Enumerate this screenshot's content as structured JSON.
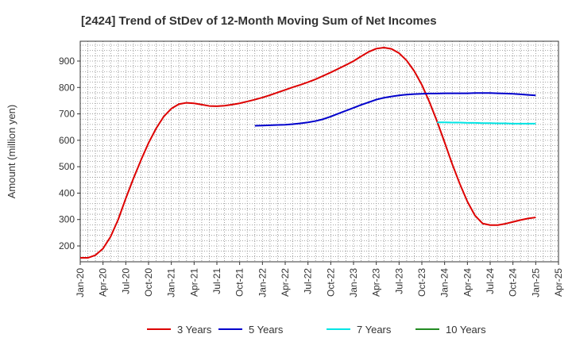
{
  "chart_data": {
    "type": "line",
    "title": "[2424]  Trend of StDev of 12-Month Moving Sum of Net Incomes",
    "xlabel": "",
    "ylabel": "Amount (million yen)",
    "ylim": [
      140,
      975
    ],
    "yticks": [
      200,
      300,
      400,
      500,
      600,
      700,
      800,
      900
    ],
    "xlim": [
      "2020-01",
      "2025-04"
    ],
    "xticks": [
      "Jan-20",
      "Apr-20",
      "Jul-20",
      "Oct-20",
      "Jan-21",
      "Apr-21",
      "Jul-21",
      "Oct-21",
      "Jan-22",
      "Apr-22",
      "Jul-22",
      "Oct-22",
      "Jan-23",
      "Apr-23",
      "Jul-23",
      "Oct-23",
      "Jan-24",
      "Apr-24",
      "Jul-24",
      "Oct-24",
      "Jan-25",
      "Apr-25"
    ],
    "grid": true,
    "legend_position": "bottom",
    "series": [
      {
        "name": "3 Years",
        "color": "#dd0000",
        "points": [
          [
            "2020-01",
            155
          ],
          [
            "2020-02",
            155
          ],
          [
            "2020-03",
            165
          ],
          [
            "2020-04",
            190
          ],
          [
            "2020-05",
            235
          ],
          [
            "2020-06",
            300
          ],
          [
            "2020-07",
            380
          ],
          [
            "2020-08",
            455
          ],
          [
            "2020-09",
            525
          ],
          [
            "2020-10",
            590
          ],
          [
            "2020-11",
            645
          ],
          [
            "2020-12",
            690
          ],
          [
            "2021-01",
            720
          ],
          [
            "2021-02",
            737
          ],
          [
            "2021-03",
            742
          ],
          [
            "2021-04",
            740
          ],
          [
            "2021-05",
            735
          ],
          [
            "2021-06",
            730
          ],
          [
            "2021-07",
            729
          ],
          [
            "2021-08",
            731
          ],
          [
            "2021-09",
            735
          ],
          [
            "2021-10",
            740
          ],
          [
            "2021-11",
            747
          ],
          [
            "2021-12",
            754
          ],
          [
            "2022-01",
            762
          ],
          [
            "2022-02",
            771
          ],
          [
            "2022-03",
            781
          ],
          [
            "2022-04",
            791
          ],
          [
            "2022-05",
            801
          ],
          [
            "2022-06",
            810
          ],
          [
            "2022-07",
            820
          ],
          [
            "2022-08",
            831
          ],
          [
            "2022-09",
            844
          ],
          [
            "2022-10",
            857
          ],
          [
            "2022-11",
            871
          ],
          [
            "2022-12",
            885
          ],
          [
            "2023-01",
            900
          ],
          [
            "2023-02",
            918
          ],
          [
            "2023-03",
            935
          ],
          [
            "2023-04",
            947
          ],
          [
            "2023-05",
            951
          ],
          [
            "2023-06",
            946
          ],
          [
            "2023-07",
            930
          ],
          [
            "2023-08",
            902
          ],
          [
            "2023-09",
            862
          ],
          [
            "2023-10",
            810
          ],
          [
            "2023-11",
            745
          ],
          [
            "2023-12",
            672
          ],
          [
            "2024-01",
            592
          ],
          [
            "2024-02",
            510
          ],
          [
            "2024-03",
            435
          ],
          [
            "2024-04",
            368
          ],
          [
            "2024-05",
            315
          ],
          [
            "2024-06",
            285
          ],
          [
            "2024-07",
            279
          ],
          [
            "2024-08",
            279
          ],
          [
            "2024-09",
            284
          ],
          [
            "2024-10",
            291
          ],
          [
            "2024-11",
            298
          ],
          [
            "2024-12",
            304
          ],
          [
            "2025-01",
            308
          ]
        ]
      },
      {
        "name": "5 Years",
        "color": "#0000cc",
        "points": [
          [
            "2021-12",
            655
          ],
          [
            "2022-01",
            656
          ],
          [
            "2022-02",
            657
          ],
          [
            "2022-03",
            658
          ],
          [
            "2022-04",
            659
          ],
          [
            "2022-05",
            661
          ],
          [
            "2022-06",
            664
          ],
          [
            "2022-07",
            668
          ],
          [
            "2022-08",
            673
          ],
          [
            "2022-09",
            680
          ],
          [
            "2022-10",
            690
          ],
          [
            "2022-11",
            701
          ],
          [
            "2022-12",
            712
          ],
          [
            "2023-01",
            723
          ],
          [
            "2023-02",
            734
          ],
          [
            "2023-03",
            744
          ],
          [
            "2023-04",
            754
          ],
          [
            "2023-05",
            761
          ],
          [
            "2023-06",
            766
          ],
          [
            "2023-07",
            770
          ],
          [
            "2023-08",
            773
          ],
          [
            "2023-09",
            775
          ],
          [
            "2023-10",
            776
          ],
          [
            "2023-11",
            777
          ],
          [
            "2023-12",
            777
          ],
          [
            "2024-01",
            778
          ],
          [
            "2024-02",
            778
          ],
          [
            "2024-03",
            778
          ],
          [
            "2024-04",
            778
          ],
          [
            "2024-05",
            779
          ],
          [
            "2024-06",
            779
          ],
          [
            "2024-07",
            779
          ],
          [
            "2024-08",
            778
          ],
          [
            "2024-09",
            777
          ],
          [
            "2024-10",
            776
          ],
          [
            "2024-11",
            774
          ],
          [
            "2024-12",
            772
          ],
          [
            "2025-01",
            770
          ]
        ]
      },
      {
        "name": "7 Years",
        "color": "#00e5e5",
        "points": [
          [
            "2023-12",
            668
          ],
          [
            "2024-01",
            668
          ],
          [
            "2024-02",
            667
          ],
          [
            "2024-03",
            667
          ],
          [
            "2024-04",
            666
          ],
          [
            "2024-05",
            666
          ],
          [
            "2024-06",
            665
          ],
          [
            "2024-07",
            665
          ],
          [
            "2024-08",
            664
          ],
          [
            "2024-09",
            664
          ],
          [
            "2024-10",
            663
          ],
          [
            "2024-11",
            663
          ],
          [
            "2024-12",
            663
          ],
          [
            "2025-01",
            663
          ]
        ]
      },
      {
        "name": "10 Years",
        "color": "#228b22",
        "points": []
      }
    ]
  }
}
